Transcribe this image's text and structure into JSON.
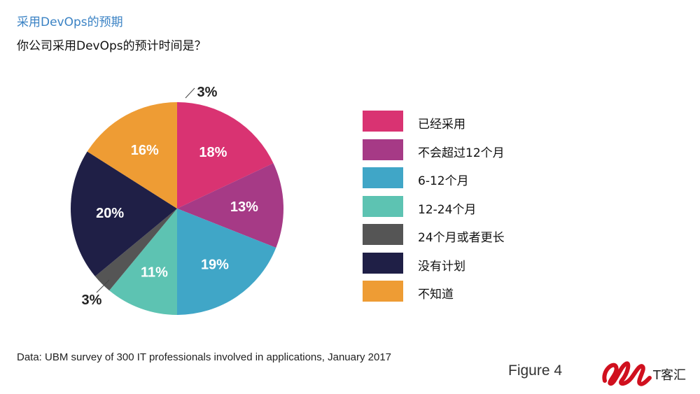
{
  "header": {
    "title": "采用DevOps的预期",
    "subtitle": "你公司采用DevOps的预计时间是？"
  },
  "chart_data": {
    "type": "pie",
    "slices": [
      {
        "label": "已经采用",
        "value": 18,
        "value_label": "18%",
        "color": "#d93372"
      },
      {
        "label": "不会超过12个月",
        "value": 13,
        "value_label": "13%",
        "color": "#a63a86"
      },
      {
        "label": "6-12个月",
        "value": 19,
        "value_label": "19%",
        "color": "#40a6c7"
      },
      {
        "label": "12-24个月",
        "value": 11,
        "value_label": "11%",
        "color": "#5dc3b2"
      },
      {
        "label": "24个月或者更长",
        "value": 3,
        "value_label": "3%",
        "color": "#555555"
      },
      {
        "label": "没有计划",
        "value": 20,
        "value_label": "20%",
        "color": "#1f1f46"
      },
      {
        "label": "不知道",
        "value": 16,
        "value_label": "16%",
        "color": "#ee9c34"
      }
    ],
    "callout_labels": [
      "3%",
      "3%"
    ],
    "legend_position": "right"
  },
  "footer": {
    "source": "Data: UBM survey of 300 IT professionals involved in applications, January 2017",
    "figure": "Figure 4",
    "logo_text": "T客汇"
  },
  "logo": {
    "mark_color": "#d0101e"
  }
}
